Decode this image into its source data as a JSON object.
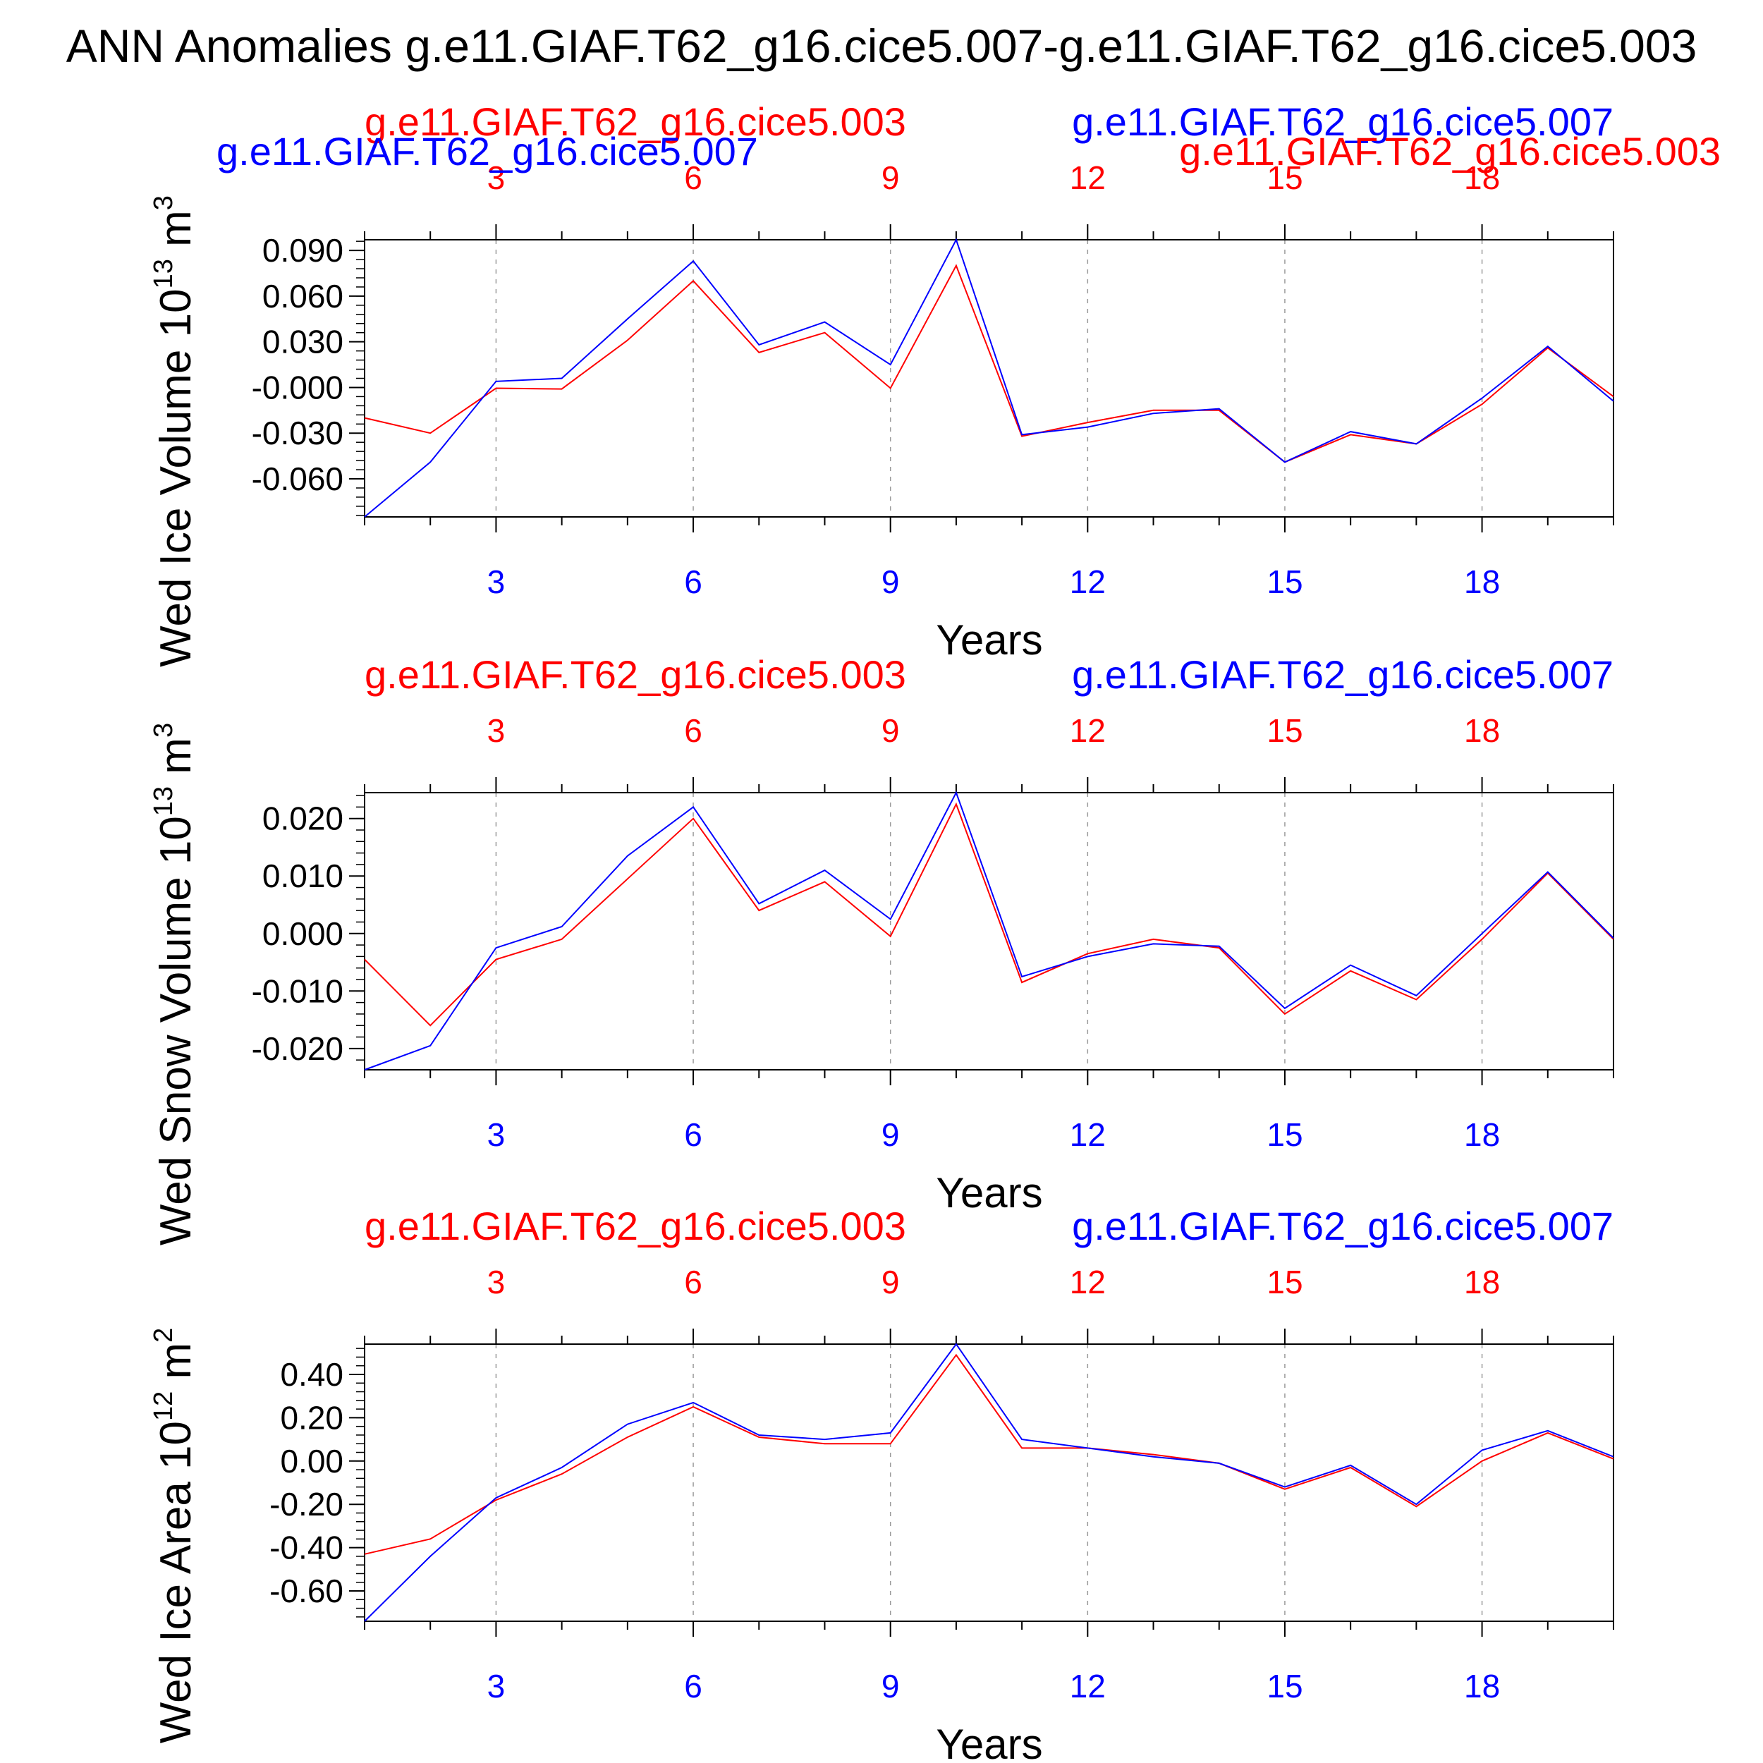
{
  "figure_title": "ANN Anomalies g.e11.GIAF.T62_g16.cice5.007-g.e11.GIAF.T62_g16.cice5.003",
  "colors": {
    "case_003": "#ff0000",
    "case_007": "#0000ff",
    "frame": "#000000",
    "grid": "#9a9a9a"
  },
  "chart_data": [
    {
      "type": "line",
      "ylabel": "Wed Ice Volume 10",
      "ylabel_exp": "13",
      "ylabel_unit": " m",
      "ylabel_unit_exp": "3",
      "xlabel": "Years",
      "x": [
        1,
        2,
        3,
        4,
        5,
        6,
        7,
        8,
        9,
        10,
        11,
        12,
        13,
        14,
        15,
        16,
        17,
        18,
        19,
        20
      ],
      "xlim": [
        1,
        20
      ],
      "ylim": [
        -0.085,
        0.097
      ],
      "xticks": [
        "3",
        "6",
        "9",
        "12",
        "15",
        "18"
      ],
      "yticks": [
        "0.090",
        "0.060",
        "0.030",
        "-0.000",
        "-0.030",
        "-0.060"
      ],
      "ytick_values": [
        0.09,
        0.06,
        0.03,
        0.0,
        -0.03,
        -0.06
      ],
      "legend_left": "g.e11.GIAF.T62_g16.cice5.003",
      "legend_right": "g.e11.GIAF.T62_g16.cice5.007",
      "legend_left2": "g.e11.GIAF.T62_g16.cice5.007",
      "legend_right2": "g.e11.GIAF.T62_g16.cice5.003",
      "series": [
        {
          "name": "g.e11.GIAF.T62_g16.cice5.003",
          "color": "#ff0000",
          "values": [
            -0.02,
            -0.03,
            -0.0005,
            -0.001,
            0.031,
            0.07,
            0.023,
            0.036,
            -0.0005,
            0.08,
            -0.032,
            -0.023,
            -0.015,
            -0.015,
            -0.049,
            -0.031,
            -0.037,
            -0.011,
            0.026,
            -0.006
          ]
        },
        {
          "name": "g.e11.GIAF.T62_g16.cice5.007",
          "color": "#0000ff",
          "values": [
            -0.085,
            -0.049,
            0.004,
            0.006,
            0.045,
            0.083,
            0.028,
            0.043,
            0.015,
            0.097,
            -0.031,
            -0.026,
            -0.017,
            -0.014,
            -0.049,
            -0.029,
            -0.037,
            -0.007,
            0.027,
            -0.009
          ]
        }
      ]
    },
    {
      "type": "line",
      "ylabel": "Wed Snow Volume 10",
      "ylabel_exp": "13",
      "ylabel_unit": " m",
      "ylabel_unit_exp": "3",
      "xlabel": "Years",
      "x": [
        1,
        2,
        3,
        4,
        5,
        6,
        7,
        8,
        9,
        10,
        11,
        12,
        13,
        14,
        15,
        16,
        17,
        18,
        19,
        20
      ],
      "xlim": [
        1,
        20
      ],
      "ylim": [
        -0.0237,
        0.0245
      ],
      "xticks": [
        "3",
        "6",
        "9",
        "12",
        "15",
        "18"
      ],
      "yticks": [
        "0.020",
        "0.010",
        "0.000",
        "-0.010",
        "-0.020"
      ],
      "ytick_values": [
        0.02,
        0.01,
        0.0,
        -0.01,
        -0.02
      ],
      "legend_left": "g.e11.GIAF.T62_g16.cice5.003",
      "legend_right": "g.e11.GIAF.T62_g16.cice5.007",
      "series": [
        {
          "name": "g.e11.GIAF.T62_g16.cice5.003",
          "color": "#ff0000",
          "values": [
            -0.0045,
            -0.016,
            -0.0045,
            -0.001,
            0.0095,
            0.02,
            0.004,
            0.009,
            -0.0005,
            0.0225,
            -0.0085,
            -0.0035,
            -0.001,
            -0.0025,
            -0.014,
            -0.0065,
            -0.0115,
            -0.001,
            0.0105,
            -0.001
          ]
        },
        {
          "name": "g.e11.GIAF.T62_g16.cice5.007",
          "color": "#0000ff",
          "values": [
            -0.0237,
            -0.0195,
            -0.0025,
            0.0012,
            0.0135,
            0.022,
            0.0052,
            0.011,
            0.0025,
            0.0245,
            -0.0075,
            -0.004,
            -0.0018,
            -0.0022,
            -0.013,
            -0.0055,
            -0.0108,
            0.0,
            0.0107,
            -0.0008
          ]
        }
      ]
    },
    {
      "type": "line",
      "ylabel": "Wed Ice Area 10",
      "ylabel_exp": "12",
      "ylabel_unit": " m",
      "ylabel_unit_exp": "2",
      "xlabel": "Years",
      "x": [
        1,
        2,
        3,
        4,
        5,
        6,
        7,
        8,
        9,
        10,
        11,
        12,
        13,
        14,
        15,
        16,
        17,
        18,
        19,
        20
      ],
      "xlim": [
        1,
        20
      ],
      "ylim": [
        -0.74,
        0.54
      ],
      "xticks": [
        "3",
        "6",
        "9",
        "12",
        "15",
        "18"
      ],
      "yticks": [
        "0.40",
        "0.20",
        "0.00",
        "-0.20",
        "-0.40",
        "-0.60"
      ],
      "ytick_values": [
        0.4,
        0.2,
        0.0,
        -0.2,
        -0.4,
        -0.6
      ],
      "legend_left": "g.e11.GIAF.T62_g16.cice5.003",
      "legend_right": "g.e11.GIAF.T62_g16.cice5.007",
      "series": [
        {
          "name": "g.e11.GIAF.T62_g16.cice5.003",
          "color": "#ff0000",
          "values": [
            -0.43,
            -0.36,
            -0.18,
            -0.06,
            0.11,
            0.25,
            0.11,
            0.08,
            0.08,
            0.49,
            0.06,
            0.06,
            0.03,
            -0.01,
            -0.13,
            -0.03,
            -0.21,
            0.0,
            0.13,
            0.01
          ]
        },
        {
          "name": "g.e11.GIAF.T62_g16.cice5.007",
          "color": "#0000ff",
          "values": [
            -0.74,
            -0.44,
            -0.17,
            -0.03,
            0.17,
            0.27,
            0.12,
            0.1,
            0.13,
            0.54,
            0.1,
            0.06,
            0.02,
            -0.01,
            -0.12,
            -0.02,
            -0.2,
            0.05,
            0.14,
            0.02
          ]
        }
      ]
    }
  ]
}
